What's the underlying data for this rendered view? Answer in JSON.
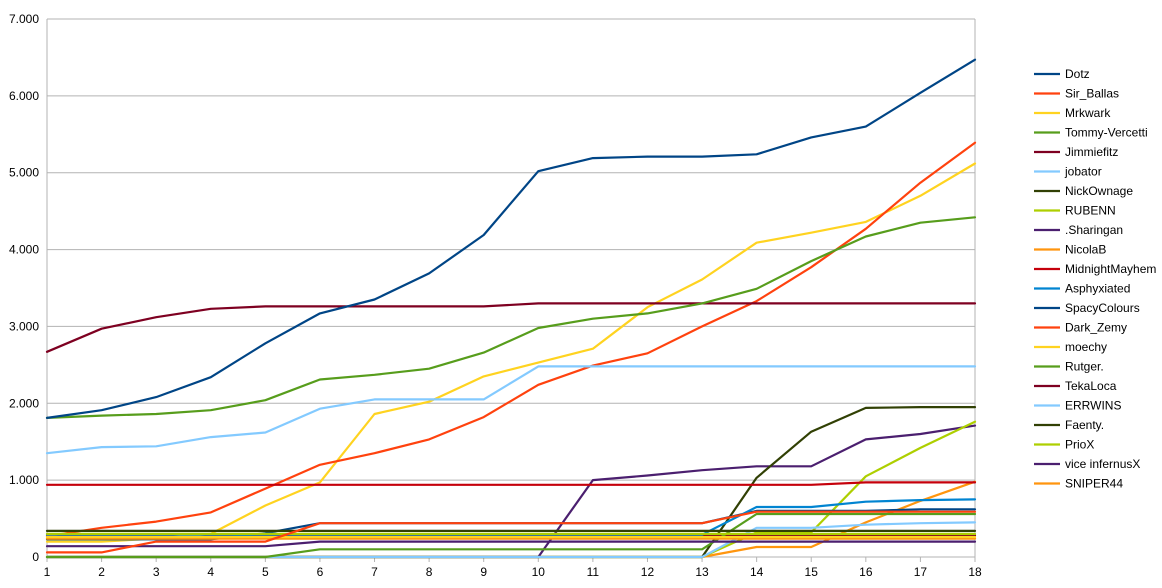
{
  "chart_data": {
    "type": "line",
    "title": "",
    "xlabel": "",
    "ylabel": "",
    "x": [
      1,
      2,
      3,
      4,
      5,
      6,
      7,
      8,
      9,
      10,
      11,
      12,
      13,
      14,
      15,
      16,
      17,
      18
    ],
    "ylim": [
      0,
      7
    ],
    "yticks": [
      0,
      1,
      2,
      3,
      4,
      5,
      6,
      7
    ],
    "ytick_labels": [
      "0",
      "1.000",
      "2.000",
      "3.000",
      "4.000",
      "5.000",
      "6.000",
      "7.000"
    ],
    "grid": "horizontal",
    "legend_position": "right",
    "series": [
      {
        "name": "Dotz",
        "color": "#004586",
        "values": [
          1.81,
          1.91,
          2.08,
          2.34,
          2.78,
          3.17,
          3.35,
          3.69,
          4.19,
          5.02,
          5.19,
          5.21,
          5.21,
          5.24,
          5.46,
          5.6,
          6.04,
          6.47
        ]
      },
      {
        "name": "Sir_Ballas",
        "color": "#ff420e",
        "values": [
          0.06,
          0.06,
          0.2,
          0.2,
          0.2,
          0.44,
          0.44,
          0.44,
          0.44,
          0.44,
          0.44,
          0.44,
          0.44,
          0.59,
          0.59,
          0.59,
          0.59,
          0.59
        ]
      },
      {
        "name": "Mrkwark",
        "color": "#ffd320",
        "values": [
          0.26,
          0.26,
          0.26,
          0.26,
          0.26,
          0.26,
          0.26,
          0.26,
          0.26,
          0.26,
          0.26,
          0.26,
          0.26,
          0.26,
          0.26,
          0.26,
          0.26,
          0.26
        ]
      },
      {
        "name": "Tommy-Vercetti",
        "color": "#579d1c",
        "values": [
          1.81,
          1.84,
          1.86,
          1.91,
          2.04,
          2.31,
          2.37,
          2.45,
          2.66,
          2.98,
          3.1,
          3.17,
          3.3,
          3.49,
          3.85,
          4.17,
          4.35,
          4.42
        ]
      },
      {
        "name": "Jimmiefitz",
        "color": "#7e0021",
        "values": [
          2.67,
          2.97,
          3.12,
          3.23,
          3.26,
          3.26,
          3.26,
          3.26,
          3.26,
          3.3,
          3.3,
          3.3,
          3.3,
          3.3,
          3.3,
          3.3,
          3.3,
          3.3
        ]
      },
      {
        "name": "jobator",
        "color": "#83caff",
        "values": [
          1.35,
          1.43,
          1.44,
          1.56,
          1.62,
          1.93,
          2.05,
          2.05,
          2.05,
          2.48,
          2.48,
          2.48,
          2.48,
          2.48,
          2.48,
          2.48,
          2.48,
          2.48
        ]
      },
      {
        "name": "NickOwnage",
        "color": "#314004",
        "values": [
          0.34,
          0.34,
          0.34,
          0.34,
          0.34,
          0.34,
          0.34,
          0.34,
          0.34,
          0.34,
          0.34,
          0.34,
          0.34,
          0.34,
          0.34,
          0.34,
          0.34,
          0.34
        ]
      },
      {
        "name": "RUBENN",
        "color": "#aecf00",
        "values": [
          0.3,
          0.3,
          0.3,
          0.3,
          0.3,
          0.3,
          0.3,
          0.3,
          0.3,
          0.3,
          0.3,
          0.3,
          0.3,
          0.3,
          0.3,
          0.3,
          0.3,
          0.3
        ]
      },
      {
        "name": ".Sharingan",
        "color": "#4b1f6f",
        "values": [
          0.14,
          0.14,
          0.14,
          0.14,
          0.14,
          0.2,
          0.2,
          0.2,
          0.2,
          0.2,
          0.2,
          0.2,
          0.2,
          0.2,
          0.2,
          0.2,
          0.2,
          0.2
        ]
      },
      {
        "name": "NicolaB",
        "color": "#ff950e",
        "values": [
          0.24,
          0.24,
          0.24,
          0.24,
          0.24,
          0.24,
          0.24,
          0.24,
          0.24,
          0.24,
          0.24,
          0.24,
          0.24,
          0.24,
          0.24,
          0.24,
          0.24,
          0.24
        ]
      },
      {
        "name": "MidnightMayhem",
        "color": "#c5000b",
        "values": [
          0.94,
          0.94,
          0.94,
          0.94,
          0.94,
          0.94,
          0.94,
          0.94,
          0.94,
          0.94,
          0.94,
          0.94,
          0.94,
          0.94,
          0.94,
          0.97,
          0.97,
          0.97
        ]
      },
      {
        "name": "Asphyxiated",
        "color": "#0084d1",
        "values": [
          0.29,
          0.29,
          0.29,
          0.29,
          0.29,
          0.29,
          0.29,
          0.29,
          0.29,
          0.29,
          0.29,
          0.29,
          0.29,
          0.65,
          0.65,
          0.72,
          0.74,
          0.75
        ]
      },
      {
        "name": "SpacyColours",
        "color": "#004586",
        "values": [
          0.23,
          0.23,
          0.23,
          0.23,
          0.31,
          0.44,
          0.44,
          0.44,
          0.44,
          0.44,
          0.44,
          0.44,
          0.44,
          0.6,
          0.6,
          0.6,
          0.62,
          0.62
        ]
      },
      {
        "name": "Dark_Zemy",
        "color": "#ff420e",
        "values": [
          0.27,
          0.38,
          0.46,
          0.58,
          0.89,
          1.2,
          1.35,
          1.53,
          1.82,
          2.24,
          2.49,
          2.65,
          3.0,
          3.33,
          3.77,
          4.27,
          4.87,
          5.39
        ]
      },
      {
        "name": "moechy",
        "color": "#ffd320",
        "values": [
          0.2,
          0.2,
          0.24,
          0.3,
          0.67,
          0.97,
          1.86,
          2.02,
          2.35,
          2.53,
          2.71,
          3.25,
          3.61,
          4.09,
          4.22,
          4.36,
          4.7,
          5.12
        ]
      },
      {
        "name": "Rutger.",
        "color": "#579d1c",
        "values": [
          0.0,
          0.0,
          0.0,
          0.0,
          0.0,
          0.1,
          0.1,
          0.1,
          0.1,
          0.1,
          0.1,
          0.1,
          0.1,
          0.56,
          0.56,
          0.56,
          0.56,
          0.56
        ]
      },
      {
        "name": "TekaLoca",
        "color": "#7e0021",
        "values": [
          0.28,
          0.28,
          0.28,
          0.28,
          0.28,
          0.28,
          0.28,
          0.28,
          0.28,
          0.28,
          0.28,
          0.28,
          0.28,
          0.28,
          0.28,
          0.28,
          0.28,
          0.28
        ]
      },
      {
        "name": "ERRWINS",
        "color": "#83caff",
        "values": [
          0.0,
          0.0,
          0.0,
          0.0,
          0.0,
          0.0,
          0.0,
          0.0,
          0.0,
          0.0,
          0.0,
          0.0,
          0.0,
          0.38,
          0.38,
          0.42,
          0.44,
          0.45
        ]
      },
      {
        "name": "Faenty.",
        "color": "#314004",
        "values": [
          0.0,
          0.0,
          0.0,
          0.0,
          0.0,
          0.0,
          0.0,
          0.0,
          0.0,
          0.0,
          0.0,
          0.0,
          0.0,
          1.03,
          1.63,
          1.94,
          1.95,
          1.95
        ]
      },
      {
        "name": "PrioX",
        "color": "#aecf00",
        "values": [
          0.0,
          0.0,
          0.0,
          0.0,
          0.0,
          0.0,
          0.0,
          0.0,
          0.0,
          0.0,
          0.0,
          0.0,
          0.0,
          0.32,
          0.32,
          1.05,
          1.42,
          1.76
        ]
      },
      {
        "name": "vice infernusX",
        "color": "#4b1f6f",
        "values": [
          0.0,
          0.0,
          0.0,
          0.0,
          0.0,
          0.0,
          0.0,
          0.0,
          0.0,
          0.0,
          1.0,
          1.06,
          1.13,
          1.18,
          1.18,
          1.53,
          1.6,
          1.71
        ]
      },
      {
        "name": "SNIPER44",
        "color": "#ff950e",
        "values": [
          0.0,
          0.0,
          0.0,
          0.0,
          0.0,
          0.0,
          0.0,
          0.0,
          0.0,
          0.0,
          0.0,
          0.0,
          0.0,
          0.13,
          0.13,
          0.45,
          0.73,
          0.98
        ]
      }
    ]
  }
}
